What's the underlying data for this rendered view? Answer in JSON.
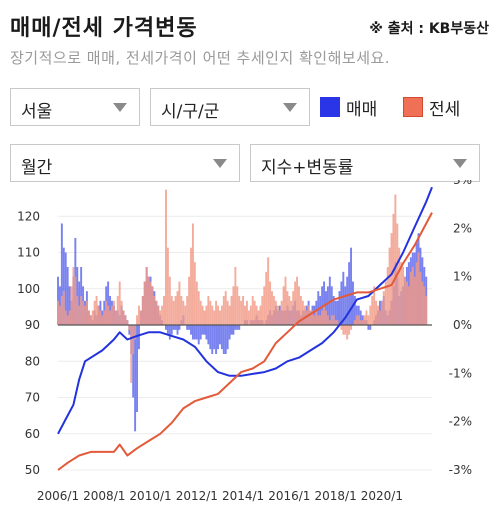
{
  "header": {
    "title": "매매/전세 가격변동",
    "source": "※ 출처 : KB부동산",
    "subtitle": "장기적으로 매매, 전세가격이 어떤 추세인지 확인해보세요."
  },
  "controls": {
    "region": "서울",
    "district": "시/구/군",
    "period": "월간",
    "metric": "지수+변동률"
  },
  "legend": [
    {
      "label": "매매",
      "color": "#2b35e8"
    },
    {
      "label": "전세",
      "color": "#ef6f57"
    }
  ],
  "chart_data": {
    "type": "bar+line",
    "x_ticks": [
      "2006/1",
      "2008/1",
      "2010/1",
      "2012/1",
      "2014/1",
      "2016/1",
      "2018/1",
      "2020/1"
    ],
    "x_range": [
      "2006-01",
      "2022-03"
    ],
    "y_left": {
      "range": [
        50,
        130
      ],
      "ticks": [
        50,
        60,
        70,
        80,
        90,
        100,
        110,
        120
      ]
    },
    "y_right": {
      "range": [
        -3,
        3
      ],
      "ticks": [
        "-3%",
        "-2%",
        "-1%",
        "0%",
        "1%",
        "2%",
        "3%"
      ]
    },
    "grid": true,
    "series_lines": [
      {
        "name": "매매",
        "color": "#2233dd",
        "points": [
          [
            "2006-01",
            60
          ],
          [
            "2006-06",
            65
          ],
          [
            "2006-09",
            68
          ],
          [
            "2006-12",
            75
          ],
          [
            "2007-03",
            80
          ],
          [
            "2007-12",
            83
          ],
          [
            "2008-06",
            86
          ],
          [
            "2008-09",
            88
          ],
          [
            "2009-01",
            86
          ],
          [
            "2009-06",
            87
          ],
          [
            "2009-12",
            88
          ],
          [
            "2010-06",
            88
          ],
          [
            "2010-12",
            87
          ],
          [
            "2011-06",
            86
          ],
          [
            "2011-12",
            84
          ],
          [
            "2012-06",
            80
          ],
          [
            "2012-12",
            77
          ],
          [
            "2013-06",
            76
          ],
          [
            "2013-12",
            76
          ],
          [
            "2014-06",
            76.5
          ],
          [
            "2014-12",
            77
          ],
          [
            "2015-06",
            78
          ],
          [
            "2015-12",
            80
          ],
          [
            "2016-06",
            81
          ],
          [
            "2016-12",
            83
          ],
          [
            "2017-06",
            85
          ],
          [
            "2017-12",
            88
          ],
          [
            "2018-06",
            92
          ],
          [
            "2018-12",
            97
          ],
          [
            "2019-06",
            98
          ],
          [
            "2019-12",
            101
          ],
          [
            "2020-06",
            104
          ],
          [
            "2020-12",
            110
          ],
          [
            "2021-06",
            117
          ],
          [
            "2021-12",
            124
          ],
          [
            "2022-03",
            128
          ]
        ]
      },
      {
        "name": "전세",
        "color": "#e25a3a",
        "points": [
          [
            "2006-01",
            50
          ],
          [
            "2006-06",
            52
          ],
          [
            "2006-12",
            54
          ],
          [
            "2007-06",
            55
          ],
          [
            "2007-12",
            55
          ],
          [
            "2008-06",
            55
          ],
          [
            "2008-09",
            57
          ],
          [
            "2009-01",
            54
          ],
          [
            "2009-06",
            56
          ],
          [
            "2009-12",
            58
          ],
          [
            "2010-06",
            60
          ],
          [
            "2010-12",
            63
          ],
          [
            "2011-06",
            67
          ],
          [
            "2011-12",
            69
          ],
          [
            "2012-06",
            70
          ],
          [
            "2012-12",
            71
          ],
          [
            "2013-06",
            74
          ],
          [
            "2013-12",
            77
          ],
          [
            "2014-06",
            78
          ],
          [
            "2014-12",
            80
          ],
          [
            "2015-06",
            85
          ],
          [
            "2015-12",
            88
          ],
          [
            "2016-06",
            91
          ],
          [
            "2016-12",
            93
          ],
          [
            "2017-06",
            95
          ],
          [
            "2017-12",
            97
          ],
          [
            "2018-06",
            98
          ],
          [
            "2018-12",
            99
          ],
          [
            "2019-06",
            99
          ],
          [
            "2019-12",
            100
          ],
          [
            "2020-06",
            101
          ],
          [
            "2020-12",
            107
          ],
          [
            "2021-06",
            112
          ],
          [
            "2021-12",
            118
          ],
          [
            "2022-03",
            121
          ]
        ]
      }
    ],
    "series_bars_pct": [
      {
        "name": "매매",
        "color": "#5b67ec",
        "values": [
          1.0,
          0.8,
          2.1,
          1.6,
          1.5,
          1.2,
          0.8,
          0.5,
          1.0,
          1.8,
          1.2,
          0.9,
          1.2,
          0.8,
          0.5,
          0.7,
          0.3,
          0.2,
          0.1,
          0.3,
          0.2,
          0.4,
          0.5,
          0.3,
          0.5,
          0.8,
          0.9,
          0.6,
          0.5,
          0.4,
          0.3,
          0.3,
          0.2,
          0.4,
          0.3,
          0.2,
          0.1,
          -0.2,
          -0.6,
          -1.5,
          -2.2,
          -1.8,
          -0.5,
          0.3,
          0.6,
          0.9,
          1.2,
          1.0,
          1.0,
          0.8,
          0.7,
          0.5,
          0.4,
          0.2,
          0.1,
          0.0,
          -0.1,
          -0.2,
          -0.3,
          -0.2,
          -0.1,
          -0.1,
          -0.2,
          -0.1,
          0.1,
          0.2,
          0.0,
          -0.1,
          -0.1,
          -0.2,
          -0.3,
          -0.3,
          -0.3,
          -0.4,
          -0.3,
          -0.2,
          -0.2,
          -0.3,
          -0.4,
          -0.5,
          -0.6,
          -0.5,
          -0.6,
          -0.5,
          -0.4,
          -0.5,
          -0.6,
          -0.6,
          -0.5,
          -0.3,
          -0.2,
          -0.2,
          -0.1,
          -0.1,
          -0.1,
          0.0,
          0.0,
          0.1,
          0.1,
          0.0,
          0.1,
          0.1,
          0.1,
          0.2,
          0.1,
          0.1,
          0.1,
          0.0,
          0.1,
          0.2,
          0.3,
          0.2,
          0.3,
          0.4,
          0.3,
          0.4,
          0.3,
          0.3,
          0.3,
          0.4,
          0.3,
          0.3,
          0.4,
          0.5,
          0.3,
          0.3,
          0.2,
          0.3,
          0.3,
          0.4,
          0.5,
          0.3,
          0.4,
          0.4,
          0.5,
          0.7,
          0.6,
          0.8,
          0.9,
          0.7,
          0.8,
          1.0,
          0.8,
          0.6,
          0.5,
          0.5,
          0.7,
          0.9,
          1.1,
          0.8,
          1.0,
          1.3,
          1.6,
          0.9,
          0.6,
          0.4,
          0.4,
          0.3,
          0.2,
          0.1,
          0.1,
          -0.1,
          -0.1,
          0.0,
          0.1,
          0.2,
          0.3,
          0.5,
          0.5,
          0.6,
          0.3,
          0.2,
          0.3,
          0.5,
          0.8,
          1.3,
          1.0,
          0.6,
          0.7,
          0.8,
          1.0,
          1.2,
          1.3,
          1.4,
          1.5,
          1.5,
          1.7,
          1.9,
          1.6,
          1.4,
          1.2,
          1.0
        ]
      },
      {
        "name": "전세",
        "color": "#f19a86",
        "values": [
          0.5,
          0.4,
          0.6,
          0.7,
          0.3,
          0.2,
          0.3,
          0.8,
          1.2,
          1.0,
          0.6,
          0.4,
          0.6,
          0.5,
          0.4,
          0.5,
          0.3,
          0.2,
          0.3,
          0.5,
          0.6,
          0.4,
          0.3,
          0.2,
          0.3,
          0.5,
          0.4,
          0.3,
          0.4,
          0.5,
          0.3,
          0.6,
          0.9,
          0.5,
          0.3,
          0.2,
          0.1,
          -0.1,
          -1.2,
          -0.6,
          -0.3,
          0.2,
          0.4,
          0.3,
          0.6,
          0.9,
          1.2,
          1.0,
          0.9,
          0.8,
          0.6,
          0.5,
          0.4,
          0.3,
          0.4,
          0.6,
          2.8,
          1.6,
          1.0,
          0.6,
          0.5,
          0.6,
          0.7,
          0.9,
          0.6,
          0.5,
          0.4,
          0.6,
          1.0,
          1.6,
          2.1,
          1.3,
          0.9,
          0.7,
          0.5,
          0.4,
          0.3,
          0.4,
          0.6,
          0.5,
          0.4,
          0.3,
          0.5,
          0.4,
          0.3,
          0.4,
          0.6,
          0.7,
          0.5,
          0.4,
          0.6,
          0.8,
          1.2,
          0.8,
          0.6,
          0.5,
          0.6,
          0.4,
          0.5,
          0.3,
          0.4,
          0.6,
          0.5,
          0.4,
          0.3,
          0.4,
          0.6,
          0.8,
          1.1,
          1.4,
          0.9,
          0.7,
          0.6,
          0.5,
          0.4,
          0.3,
          0.5,
          0.8,
          1.0,
          0.7,
          0.6,
          0.5,
          0.7,
          0.9,
          1.0,
          0.8,
          0.6,
          0.5,
          0.4,
          0.3,
          0.4,
          0.3,
          0.3,
          0.2,
          0.3,
          0.2,
          0.2,
          0.3,
          0.4,
          0.3,
          0.2,
          0.1,
          0.2,
          0.2,
          0.1,
          0.1,
          0.0,
          -0.1,
          -0.2,
          -0.2,
          -0.3,
          -0.2,
          -0.1,
          0.0,
          0.1,
          0.2,
          0.2,
          0.1,
          0.1,
          0.2,
          0.3,
          0.2,
          0.4,
          0.6,
          0.8,
          0.5,
          0.4,
          0.3,
          0.5,
          0.7,
          0.9,
          1.2,
          1.6,
          1.9,
          2.3,
          2.7,
          2.1,
          1.6,
          1.3,
          1.2,
          1.0,
          0.9,
          0.8,
          1.1,
          1.2,
          1.0,
          1.3,
          1.5,
          1.1,
          0.9,
          0.8,
          0.6
        ]
      }
    ]
  }
}
